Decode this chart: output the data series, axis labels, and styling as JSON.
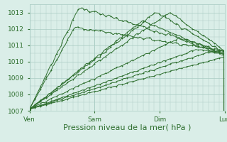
{
  "title": "Pression niveau de la mer( hPa )",
  "bg_color": "#daeee8",
  "grid_color": "#aaccc4",
  "line_color": "#2d6e2d",
  "ylim": [
    1007,
    1013.5
  ],
  "yticks": [
    1007,
    1008,
    1009,
    1010,
    1011,
    1012,
    1013
  ],
  "day_labels": [
    "Ven",
    "Sam",
    "Dim",
    "Lun"
  ],
  "day_positions": [
    0,
    72,
    144,
    216
  ],
  "total_points": 217,
  "xlabel_fontsize": 8,
  "tick_fontsize": 6.5
}
